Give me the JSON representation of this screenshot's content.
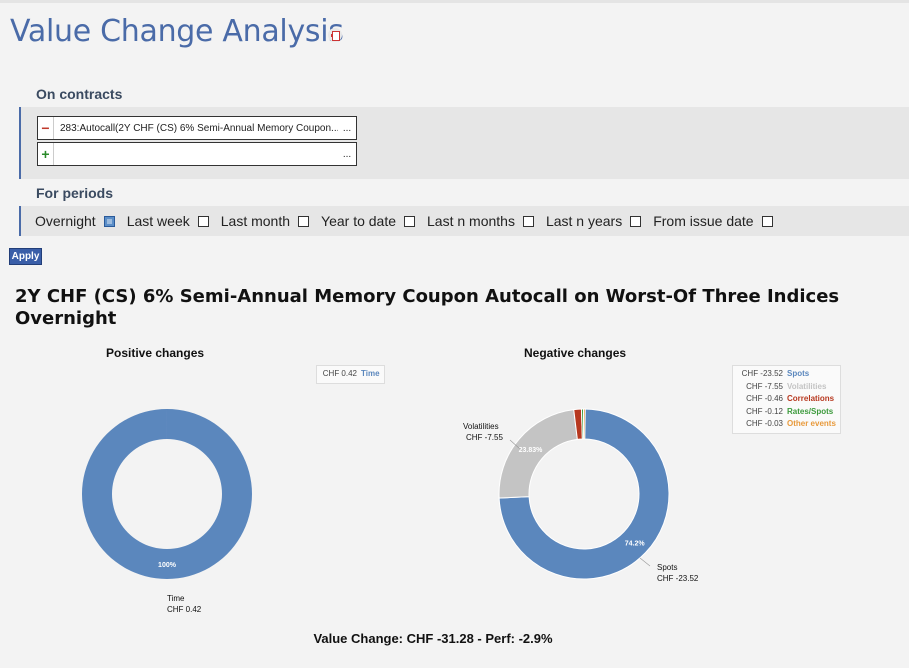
{
  "page": {
    "title": "Value Change Analysis",
    "pdf_icon": "pdf-icon"
  },
  "contracts": {
    "label": "On contracts",
    "rows": [
      {
        "action": "−",
        "text": "283:Autocall(2Y CHF (CS) 6% Semi-Annual Memory Coupon...",
        "more": "..."
      },
      {
        "action": "+",
        "text": "",
        "more": "..."
      }
    ]
  },
  "periods": {
    "label": "For periods",
    "items": [
      {
        "label": "Overnight",
        "checked": true
      },
      {
        "label": "Last week",
        "checked": false
      },
      {
        "label": "Last month",
        "checked": false
      },
      {
        "label": "Year to date",
        "checked": false
      },
      {
        "label": "Last n months",
        "checked": false
      },
      {
        "label": "Last n years",
        "checked": false
      },
      {
        "label": "From issue date",
        "checked": false
      }
    ]
  },
  "apply_label": "Apply",
  "report": {
    "title_line1": "2Y CHF (CS) 6% Semi-Annual Memory Coupon Autocall on Worst-Of Three Indices",
    "title_line2": "Overnight",
    "summary": "Value Change: CHF -31.28 - Perf: -2.9%"
  },
  "chart_data": [
    {
      "type": "pie",
      "title": "Positive changes",
      "slices": [
        {
          "name": "Time",
          "value": 0.42,
          "value_label": "CHF 0.42",
          "pct_label": "100%",
          "color": "#5b87bd"
        }
      ],
      "legend": [
        {
          "value": "CHF 0.42",
          "name": "Time",
          "color": "#5b87bd"
        }
      ],
      "callouts": [
        {
          "name": "Time",
          "value": "CHF 0.42"
        }
      ]
    },
    {
      "type": "pie",
      "title": "Negative changes",
      "slices": [
        {
          "name": "Spots",
          "value": 23.52,
          "value_label": "CHF -23.52",
          "pct_label": "74.2%",
          "color": "#5b87bd"
        },
        {
          "name": "Volatilities",
          "value": 7.55,
          "value_label": "CHF -7.55",
          "pct_label": "23.83%",
          "color": "#c4c4c4"
        },
        {
          "name": "Correlations",
          "value": 0.46,
          "value_label": "CHF -0.46",
          "pct_label": "",
          "color": "#b7381f"
        },
        {
          "name": "Rates/Spots",
          "value": 0.12,
          "value_label": "CHF -0.12",
          "pct_label": "",
          "color": "#3c9a3c"
        },
        {
          "name": "Other events",
          "value": 0.03,
          "value_label": "CHF -0.03",
          "pct_label": "",
          "color": "#e89a3c"
        }
      ],
      "legend": [
        {
          "value": "CHF -23.52",
          "name": "Spots",
          "color": "#5b87bd"
        },
        {
          "value": "CHF -7.55",
          "name": "Volatilities",
          "color": "#c4c4c4"
        },
        {
          "value": "CHF -0.46",
          "name": "Correlations",
          "color": "#b7381f"
        },
        {
          "value": "CHF -0.12",
          "name": "Rates/Spots",
          "color": "#3c9a3c"
        },
        {
          "value": "CHF -0.03",
          "name": "Other events",
          "color": "#e89a3c"
        }
      ],
      "callouts": [
        {
          "name": "Volatilities",
          "value": "CHF -7.55"
        },
        {
          "name": "Spots",
          "value": "CHF -23.52"
        }
      ]
    }
  ]
}
